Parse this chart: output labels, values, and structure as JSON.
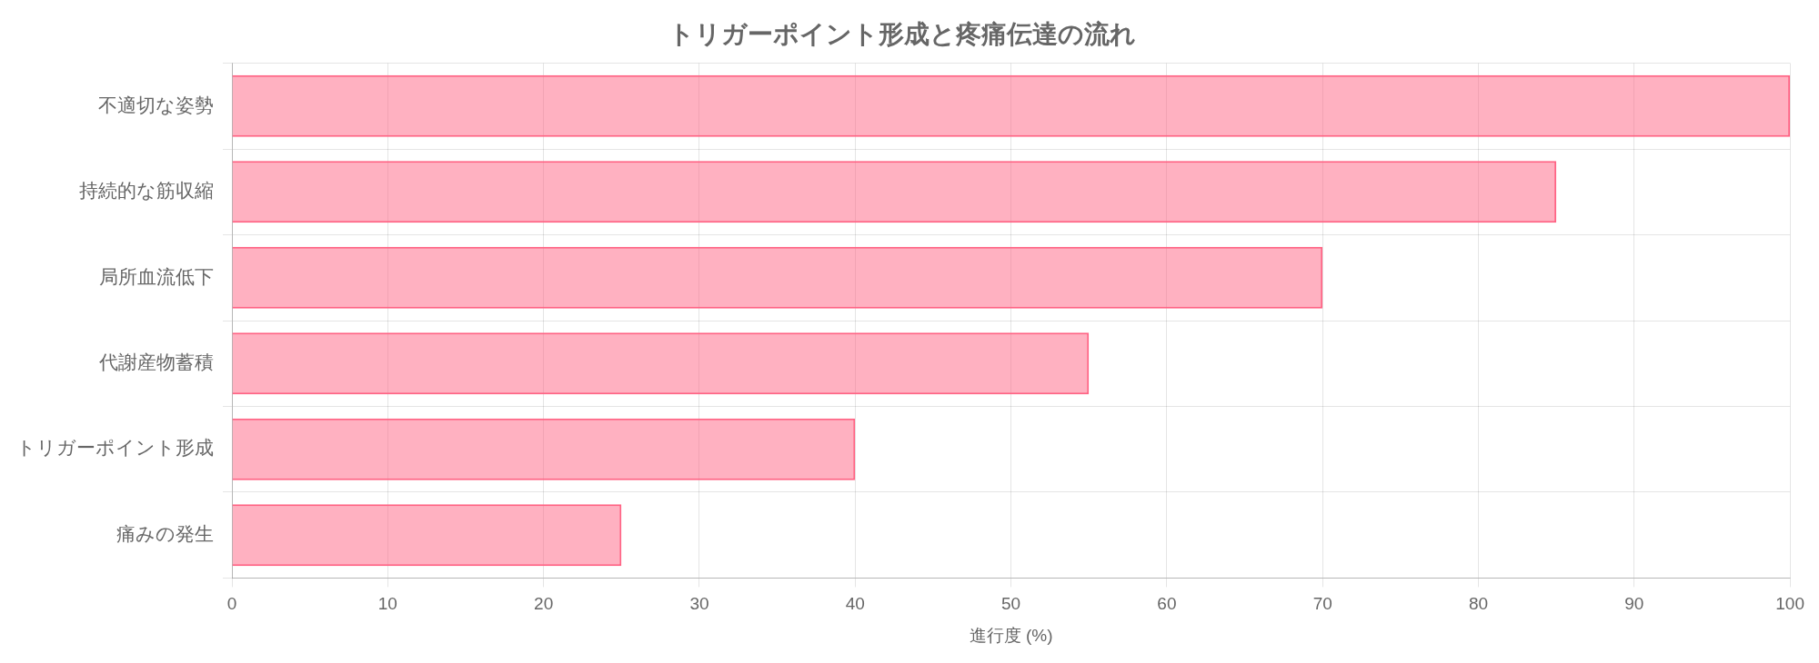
{
  "chart_data": {
    "type": "bar",
    "orientation": "horizontal",
    "title": "トリガーポイント形成と疼痛伝達の流れ",
    "xlabel": "進行度 (%)",
    "categories": [
      "不適切な姿勢",
      "持続的な筋収縮",
      "局所血流低下",
      "代謝産物蓄積",
      "トリガーポイント形成",
      "痛みの発生"
    ],
    "values": [
      100,
      85,
      70,
      55,
      40,
      25
    ],
    "color": "#ff6384",
    "xlim": [
      0,
      100
    ],
    "xticks": [
      0,
      10,
      20,
      30,
      40,
      50,
      60,
      70,
      80,
      90,
      100
    ],
    "grid": true,
    "legend": false
  }
}
